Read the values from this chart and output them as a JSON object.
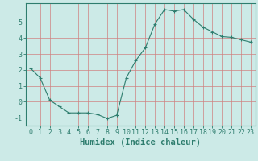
{
  "x": [
    0,
    1,
    2,
    3,
    4,
    5,
    6,
    7,
    8,
    9,
    10,
    11,
    12,
    13,
    14,
    15,
    16,
    17,
    18,
    19,
    20,
    21,
    22,
    23
  ],
  "y": [
    2.1,
    1.5,
    0.1,
    -0.3,
    -0.7,
    -0.7,
    -0.7,
    -0.8,
    -1.05,
    -0.85,
    1.5,
    2.6,
    3.4,
    4.9,
    5.8,
    5.7,
    5.8,
    5.2,
    4.7,
    4.4,
    4.1,
    4.05,
    3.9,
    3.75
  ],
  "line_color": "#2e7d6e",
  "marker": "+",
  "marker_size": 3,
  "marker_linewidth": 0.8,
  "linewidth": 0.8,
  "background_color": "#cceae7",
  "grid_color": "#d08080",
  "xlabel": "Humidex (Indice chaleur)",
  "ylim": [
    -1.5,
    6.2
  ],
  "xlim": [
    -0.5,
    23.5
  ],
  "yticks": [
    -1,
    0,
    1,
    2,
    3,
    4,
    5
  ],
  "xticks": [
    0,
    1,
    2,
    3,
    4,
    5,
    6,
    7,
    8,
    9,
    10,
    11,
    12,
    13,
    14,
    15,
    16,
    17,
    18,
    19,
    20,
    21,
    22,
    23
  ],
  "tick_fontsize": 6,
  "xlabel_fontsize": 7.5,
  "axis_color": "#2e7d6e",
  "spine_color": "#2e7d6e"
}
